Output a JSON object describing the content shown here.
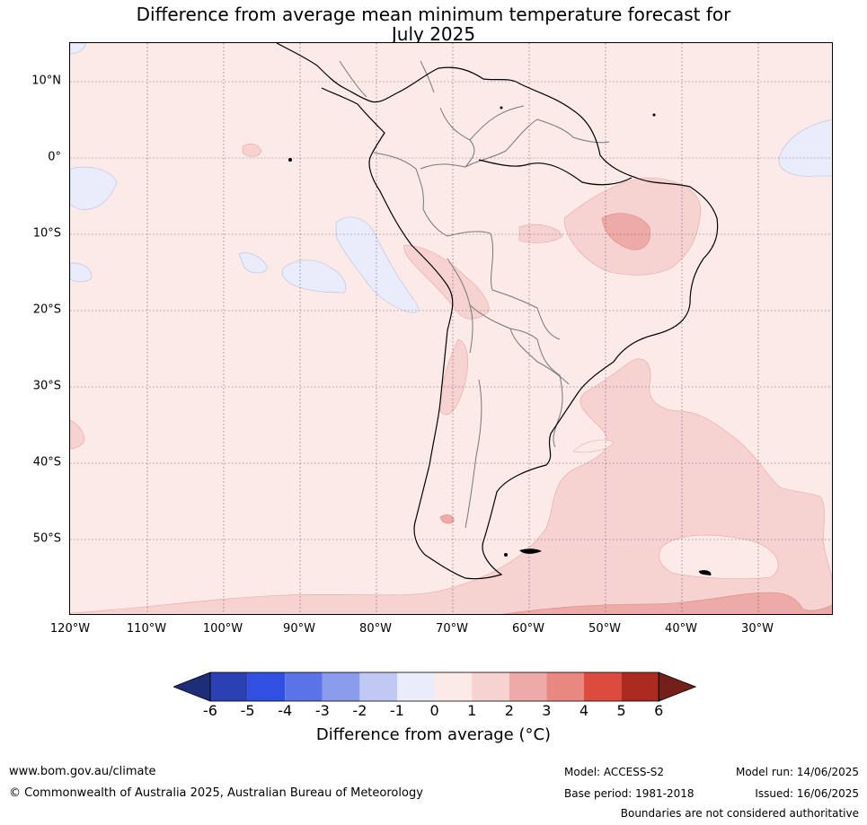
{
  "title": {
    "line1": "Difference from average mean minimum temperature forecast for",
    "line2": "July 2025"
  },
  "map": {
    "region": "South America",
    "lat_labels": [
      "10°N",
      "0°",
      "10°S",
      "20°S",
      "30°S",
      "40°S",
      "50°S"
    ],
    "lon_labels": [
      "120°W",
      "110°W",
      "100°W",
      "90°W",
      "80°W",
      "70°W",
      "60°W",
      "50°W",
      "40°W",
      "30°W"
    ],
    "lon_range": [
      -120,
      -20
    ],
    "lat_range": [
      -60,
      15
    ],
    "gridlines": "dotted"
  },
  "colorbar": {
    "tick_labels": [
      "-6",
      "-5",
      "-4",
      "-3",
      "-2",
      "-1",
      "0",
      "1",
      "2",
      "3",
      "4",
      "5",
      "6"
    ],
    "colors": [
      "#1e2d78",
      "#2a40b3",
      "#3050e0",
      "#5a73e6",
      "#8a9bec",
      "#c0c8f4",
      "#e9ecfb",
      "#fbeae8",
      "#f6d2d0",
      "#eeaaa6",
      "#e98880",
      "#dd4b3f",
      "#ab2b21",
      "#73201b"
    ],
    "label": "Difference from average (°C)"
  },
  "footer": {
    "website": "www.bom.gov.au/climate",
    "copyright": "© Commonwealth of Australia 2025, Australian Bureau of Meteorology",
    "model": "Model: ACCESS-S2",
    "base_period": "Base period: 1981-2018",
    "model_run": "Model run: 14/06/2025",
    "issued": "Issued: 16/06/2025",
    "disclaimer": "Boundaries are not considered authoritative"
  }
}
